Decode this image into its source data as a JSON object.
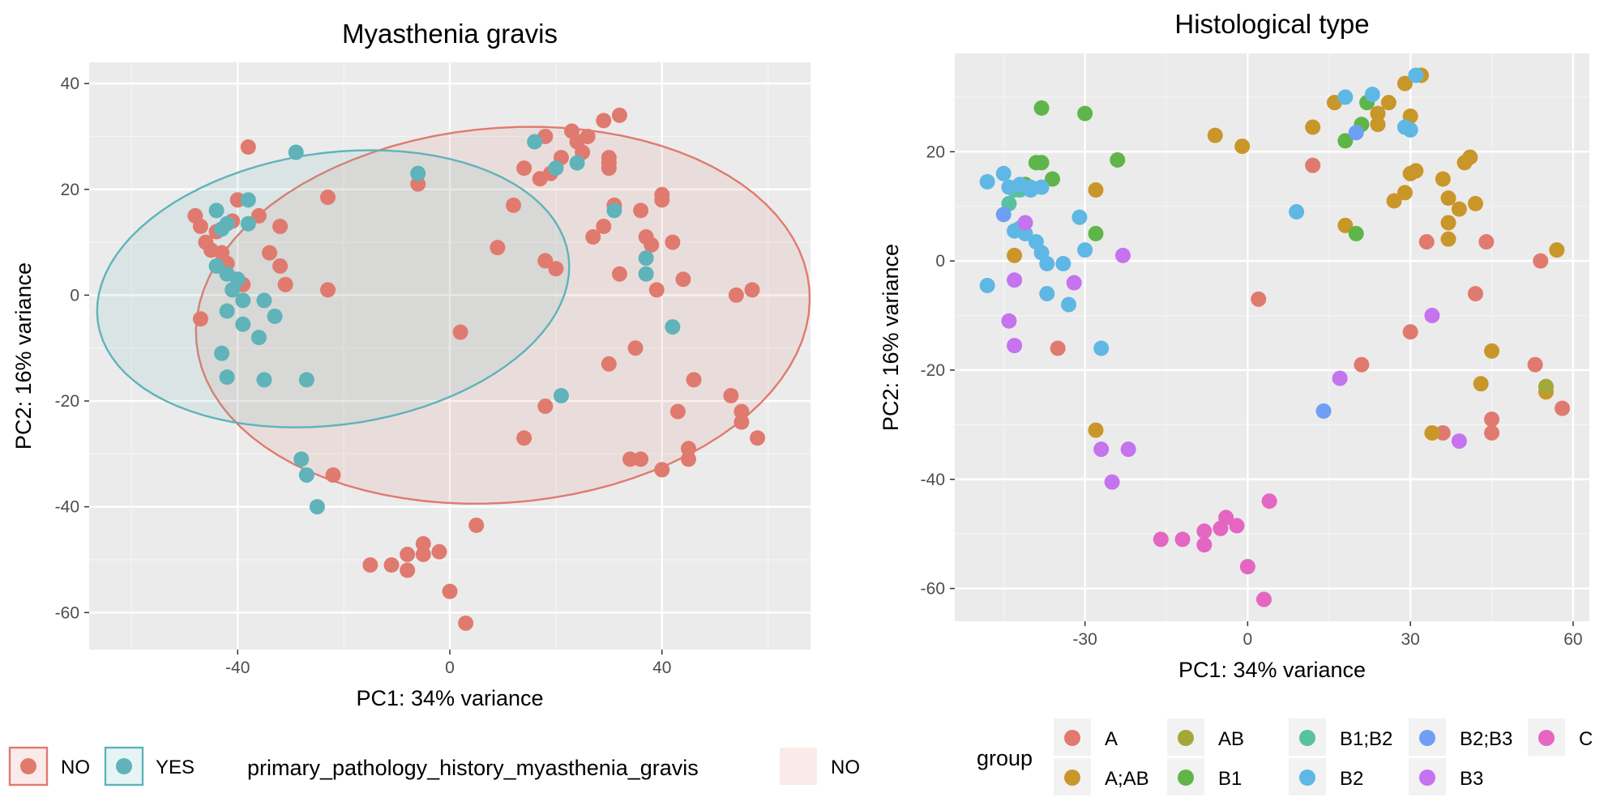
{
  "chart_data": [
    {
      "type": "scatter",
      "title": "Myasthenia gravis",
      "xlabel": "PC1: 34% variance",
      "ylabel": "PC2: 16% variance",
      "xlim": [
        -68,
        68
      ],
      "ylim": [
        -67,
        44
      ],
      "xticks": [
        "-40",
        "0",
        "40"
      ],
      "yticks": [
        "-60",
        "-40",
        "-20",
        "0",
        "20",
        "40"
      ],
      "xtick_values": [
        -40,
        0,
        40
      ],
      "ytick_values": [
        -60,
        -40,
        -20,
        0,
        20,
        40
      ],
      "grid": true,
      "legend": {
        "position": "bottom",
        "title": "primary_pathology_history_myasthenia_gravis",
        "entries": [
          "NO",
          "YES"
        ],
        "ellipse_label": "NO"
      },
      "colors": {
        "NO": "#e07a6f",
        "YES": "#5fb3b9"
      },
      "series": [
        {
          "name": "NO",
          "ellipse": {
            "cx": 10,
            "cy": -3.8,
            "rx": 58,
            "ry": 35.4,
            "angle": 5
          },
          "points": [
            [
              -38,
              28
            ],
            [
              -48,
              15
            ],
            [
              -47,
              13
            ],
            [
              -46,
              10
            ],
            [
              -45,
              8.5
            ],
            [
              -44,
              12
            ],
            [
              -43,
              8
            ],
            [
              -42,
              6
            ],
            [
              -41,
              14
            ],
            [
              -40,
              18
            ],
            [
              -39,
              2
            ],
            [
              -36,
              15
            ],
            [
              -32,
              13
            ],
            [
              -32,
              5.5
            ],
            [
              -31,
              2
            ],
            [
              -34,
              8
            ],
            [
              -23,
              18.5
            ],
            [
              -23,
              1
            ],
            [
              -47,
              -4.5
            ],
            [
              -22,
              -34
            ],
            [
              -6,
              21
            ],
            [
              2,
              -7
            ],
            [
              9,
              9
            ],
            [
              12,
              17
            ],
            [
              14,
              24
            ],
            [
              17,
              22
            ],
            [
              18,
              6.5
            ],
            [
              18,
              -21
            ],
            [
              18,
              30
            ],
            [
              19,
              23
            ],
            [
              20,
              5
            ],
            [
              21,
              26
            ],
            [
              23,
              31
            ],
            [
              24,
              29
            ],
            [
              25,
              27
            ],
            [
              26,
              30
            ],
            [
              27,
              11
            ],
            [
              29,
              13
            ],
            [
              29,
              33
            ],
            [
              30,
              25
            ],
            [
              30,
              24
            ],
            [
              30,
              26
            ],
            [
              31,
              17
            ],
            [
              32,
              34
            ],
            [
              32,
              4
            ],
            [
              30,
              -13
            ],
            [
              35,
              -10
            ],
            [
              36,
              16
            ],
            [
              37,
              11
            ],
            [
              38,
              9.5
            ],
            [
              39,
              1
            ],
            [
              40,
              18
            ],
            [
              40,
              19
            ],
            [
              42,
              10
            ],
            [
              44,
              3
            ],
            [
              14,
              -27
            ],
            [
              34,
              -31
            ],
            [
              36,
              -31
            ],
            [
              40,
              -33
            ],
            [
              45,
              -29
            ],
            [
              45,
              -31
            ],
            [
              46,
              -16
            ],
            [
              43,
              -22
            ],
            [
              53,
              -19
            ],
            [
              54,
              0
            ],
            [
              57,
              1
            ],
            [
              55,
              -22
            ],
            [
              55,
              -24
            ],
            [
              58,
              -27
            ],
            [
              -15,
              -51
            ],
            [
              -11,
              -51
            ],
            [
              -8,
              -52
            ],
            [
              -8,
              -49
            ],
            [
              -5,
              -47
            ],
            [
              -5,
              -49
            ],
            [
              -2,
              -48.5
            ],
            [
              0,
              -56
            ],
            [
              3,
              -62
            ],
            [
              5,
              -43.5
            ]
          ]
        },
        {
          "name": "YES",
          "ellipse": {
            "cx": -22,
            "cy": 1.2,
            "rx": 44.8,
            "ry": 25.7,
            "angle": 8
          },
          "points": [
            [
              -29,
              27
            ],
            [
              -44,
              16
            ],
            [
              -43,
              12.5
            ],
            [
              -42,
              13.5
            ],
            [
              -38,
              18
            ],
            [
              -38,
              13.5
            ],
            [
              -44,
              5.5
            ],
            [
              -42,
              4
            ],
            [
              -41,
              1
            ],
            [
              -40,
              3
            ],
            [
              -39,
              -1
            ],
            [
              -39,
              -5.5
            ],
            [
              -35,
              -1
            ],
            [
              -33,
              -4
            ],
            [
              -36,
              -8
            ],
            [
              -42,
              -3
            ],
            [
              -43,
              -11
            ],
            [
              -42,
              -15.5
            ],
            [
              -35,
              -16
            ],
            [
              -27,
              -16
            ],
            [
              -28,
              -31
            ],
            [
              -27,
              -34
            ],
            [
              -25,
              -40
            ],
            [
              -6,
              23
            ],
            [
              16,
              29
            ],
            [
              20,
              24
            ],
            [
              24,
              25
            ],
            [
              31,
              16
            ],
            [
              37,
              7
            ],
            [
              37,
              4
            ],
            [
              42,
              -6
            ],
            [
              21,
              -19
            ]
          ]
        }
      ]
    },
    {
      "type": "scatter",
      "title": "Histological type",
      "xlabel": "PC1: 34% variance",
      "ylabel": "PC2: 16% variance",
      "xlim": [
        -54,
        63
      ],
      "ylim": [
        -66,
        38
      ],
      "xticks": [
        "-30",
        "0",
        "30",
        "60"
      ],
      "yticks": [
        "-60",
        "-40",
        "-20",
        "0",
        "20"
      ],
      "xtick_values": [
        -30,
        0,
        30,
        60
      ],
      "ytick_values": [
        -60,
        -40,
        -20,
        0,
        20
      ],
      "grid": true,
      "legend": {
        "position": "bottom",
        "title": "group",
        "entries": [
          "A",
          "A;AB",
          "AB",
          "B1",
          "B1;B2",
          "B2",
          "B2;B3",
          "B3",
          "C"
        ]
      },
      "colors": {
        "A": "#e07a6f",
        "A;AB": "#c9962a",
        "AB": "#a2a838",
        "B1": "#5fb549",
        "B1;B2": "#58c1a0",
        "B2": "#5fb7e5",
        "B2;B3": "#6e9ff4",
        "B3": "#c573ee",
        "C": "#e466c2"
      },
      "series": [
        {
          "name": "A",
          "points": [
            [
              12,
              17.5
            ],
            [
              2,
              -7
            ],
            [
              -35,
              -16
            ],
            [
              21,
              -19
            ],
            [
              30,
              -13
            ],
            [
              33,
              3.5
            ],
            [
              42,
              -6
            ],
            [
              44,
              3.5
            ],
            [
              54,
              0
            ],
            [
              53,
              -19
            ],
            [
              45,
              -29
            ],
            [
              45,
              -31.5
            ],
            [
              58,
              -27
            ],
            [
              36,
              -31.5
            ]
          ]
        },
        {
          "name": "A;AB",
          "points": [
            [
              -28,
              13
            ],
            [
              -43,
              1
            ],
            [
              -28,
              -31
            ],
            [
              -6,
              23
            ],
            [
              -1,
              21
            ],
            [
              16,
              29
            ],
            [
              12,
              24.5
            ],
            [
              18,
              6.5
            ],
            [
              24,
              25
            ],
            [
              24,
              27
            ],
            [
              26,
              29
            ],
            [
              27,
              11
            ],
            [
              29,
              12.5
            ],
            [
              29,
              32.5
            ],
            [
              32,
              34
            ],
            [
              30,
              26.5
            ],
            [
              30,
              16
            ],
            [
              31,
              16.5
            ],
            [
              36,
              15
            ],
            [
              37,
              11.5
            ],
            [
              37,
              4
            ],
            [
              37,
              7
            ],
            [
              39,
              9.5
            ],
            [
              40,
              18
            ],
            [
              41,
              19
            ],
            [
              42,
              10.5
            ],
            [
              45,
              -16.5
            ],
            [
              43,
              -22.5
            ],
            [
              34,
              -31.5
            ],
            [
              55,
              -24
            ],
            [
              57,
              2
            ]
          ]
        },
        {
          "name": "AB",
          "points": [
            [
              55,
              -23
            ]
          ]
        },
        {
          "name": "B1",
          "points": [
            [
              -38,
              28
            ],
            [
              -30,
              27
            ],
            [
              -24,
              18.5
            ],
            [
              -41,
              14
            ],
            [
              -38,
              18
            ],
            [
              -39,
              18
            ],
            [
              -36,
              15
            ],
            [
              -28,
              5
            ],
            [
              18,
              22
            ],
            [
              20,
              5
            ],
            [
              21,
              25
            ],
            [
              22,
              29
            ]
          ]
        },
        {
          "name": "B1;B2",
          "points": [
            [
              -44,
              10.5
            ],
            [
              -43,
              13
            ],
            [
              -42,
              13
            ]
          ]
        },
        {
          "name": "B2",
          "points": [
            [
              -48,
              14.5
            ],
            [
              -45,
              16
            ],
            [
              -44,
              13.5
            ],
            [
              -42,
              14
            ],
            [
              -40,
              13.5
            ],
            [
              -40,
              13
            ],
            [
              -38,
              13.5
            ],
            [
              -43,
              5.5
            ],
            [
              -42,
              6
            ],
            [
              -41,
              5
            ],
            [
              -39,
              3.5
            ],
            [
              -38,
              1.5
            ],
            [
              -37,
              -0.5
            ],
            [
              -34,
              -0.5
            ],
            [
              -31,
              8
            ],
            [
              -30,
              2
            ],
            [
              -33,
              -8
            ],
            [
              -37,
              -6
            ],
            [
              -48,
              -4.5
            ],
            [
              -27,
              -16
            ],
            [
              9,
              9
            ],
            [
              18,
              30
            ],
            [
              23,
              30.5
            ],
            [
              29,
              24.5
            ],
            [
              31,
              34
            ],
            [
              30,
              24
            ]
          ]
        },
        {
          "name": "B2;B3",
          "points": [
            [
              -45,
              8.5
            ],
            [
              14,
              -27.5
            ],
            [
              20,
              23.5
            ]
          ]
        },
        {
          "name": "B3",
          "points": [
            [
              -41,
              7
            ],
            [
              -43,
              -3.5
            ],
            [
              -44,
              -11
            ],
            [
              -43,
              -15.5
            ],
            [
              -32,
              -4
            ],
            [
              -23,
              1
            ],
            [
              -27,
              -34.5
            ],
            [
              -25,
              -40.5
            ],
            [
              -22,
              -34.5
            ],
            [
              17,
              -21.5
            ],
            [
              34,
              -10
            ],
            [
              39,
              -33
            ]
          ]
        },
        {
          "name": "C",
          "points": [
            [
              -16,
              -51
            ],
            [
              -12,
              -51
            ],
            [
              -8,
              -52
            ],
            [
              -8,
              -49.5
            ],
            [
              -5,
              -49
            ],
            [
              -4,
              -47
            ],
            [
              -2,
              -48.5
            ],
            [
              0,
              -56
            ],
            [
              3,
              -62
            ],
            [
              4,
              -44
            ]
          ]
        }
      ]
    }
  ]
}
